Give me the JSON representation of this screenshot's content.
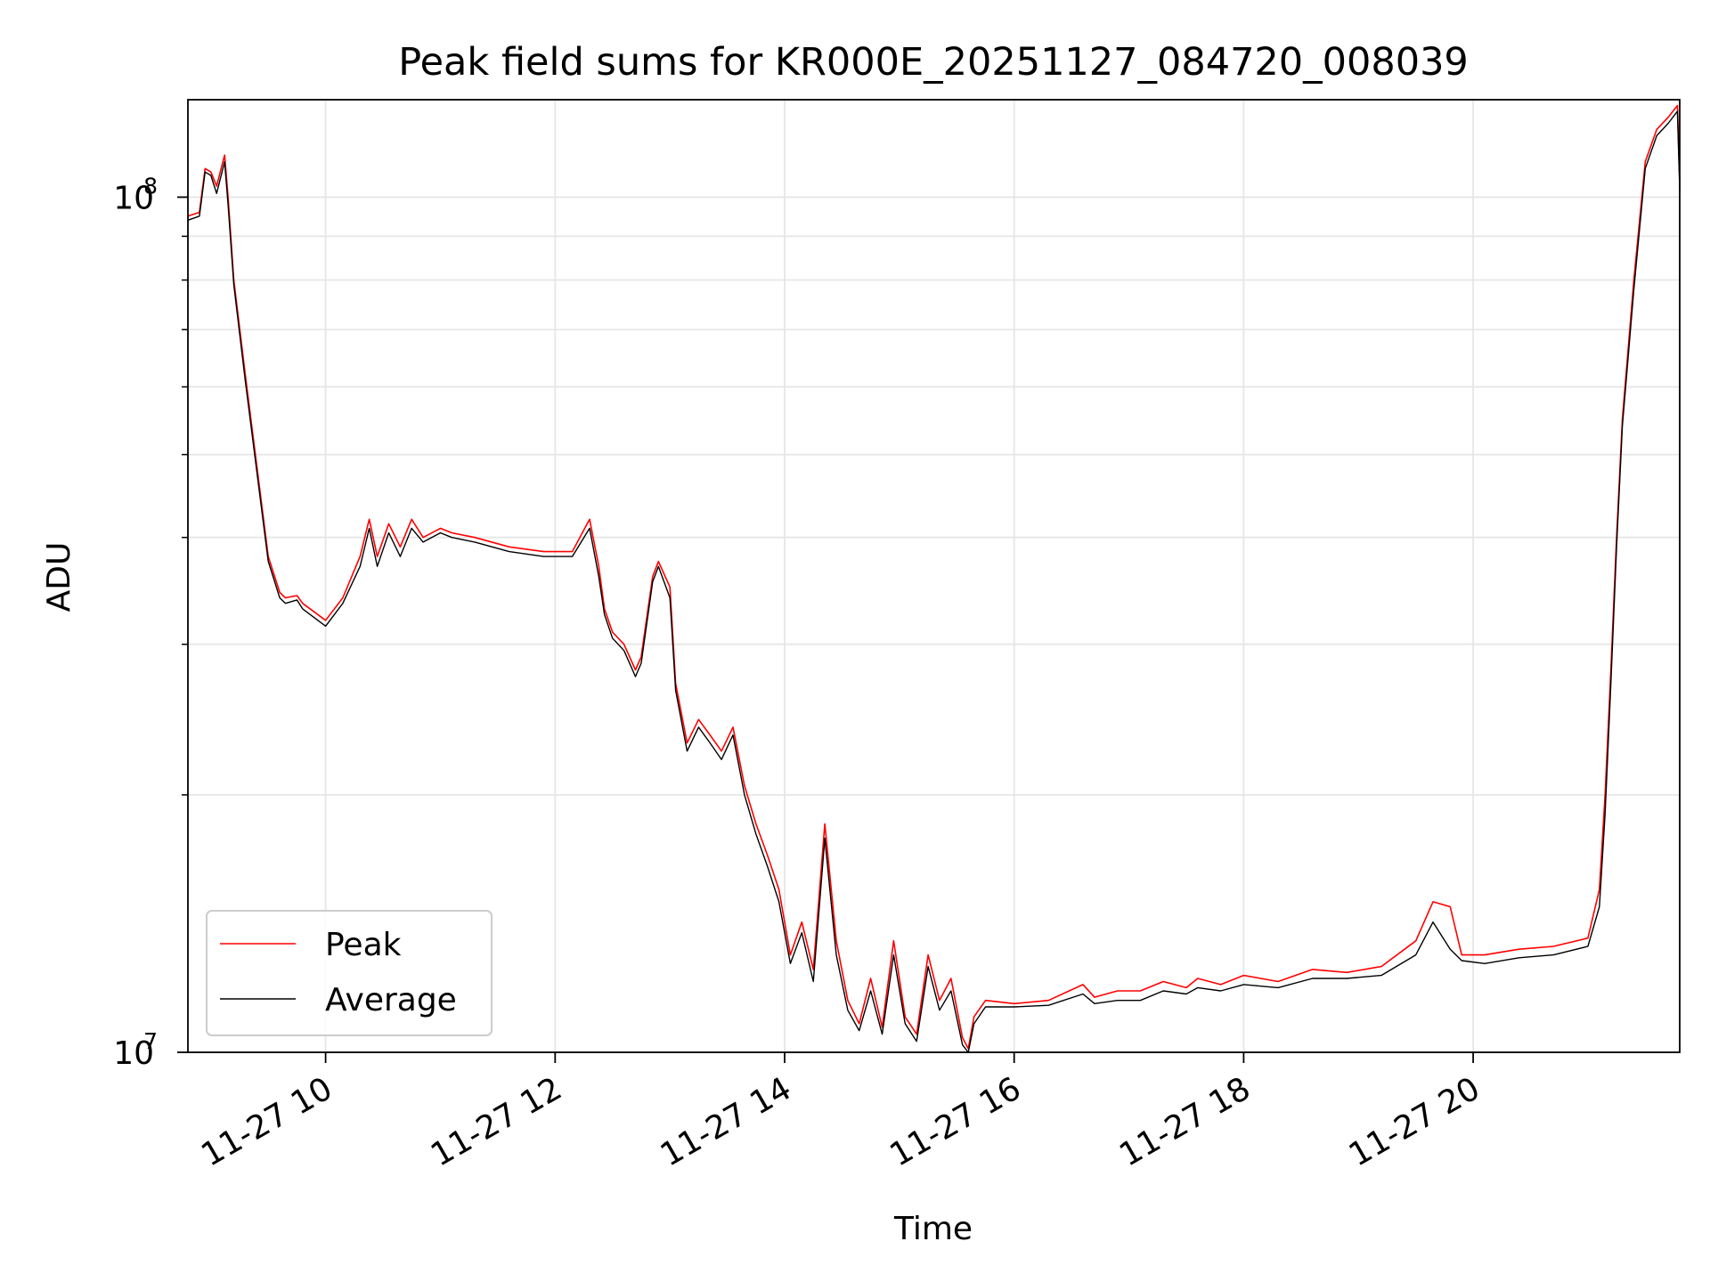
{
  "chart_data": {
    "type": "line",
    "title": "Peak field sums for KR000E_20251127_084720_008039",
    "xlabel": "Time",
    "ylabel": "ADU",
    "yscale": "log",
    "ylim": [
      10000000,
      130000000
    ],
    "xlim_hours": [
      8.8,
      21.8
    ],
    "grid": true,
    "legend_position": "lower-left",
    "x_ticks": [
      {
        "hour": 10,
        "label": "11-27 10"
      },
      {
        "hour": 12,
        "label": "11-27 12"
      },
      {
        "hour": 14,
        "label": "11-27 14"
      },
      {
        "hour": 16,
        "label": "11-27 16"
      },
      {
        "hour": 18,
        "label": "11-27 18"
      },
      {
        "hour": 20,
        "label": "11-27 20"
      }
    ],
    "y_ticks": [
      {
        "value": 10000000,
        "base": "10",
        "exp": "7"
      },
      {
        "value": 100000000,
        "base": "10",
        "exp": "8"
      }
    ],
    "y_minor_ticks": [
      20000000,
      30000000,
      40000000,
      50000000,
      60000000,
      70000000,
      80000000,
      90000000
    ],
    "series": [
      {
        "name": "Peak",
        "color": "#ff0000",
        "x_hours": [
          8.8,
          8.9,
          8.95,
          9.0,
          9.05,
          9.12,
          9.15,
          9.2,
          9.3,
          9.5,
          9.6,
          9.65,
          9.75,
          9.8,
          10.0,
          10.15,
          10.3,
          10.38,
          10.45,
          10.55,
          10.65,
          10.75,
          10.85,
          11.0,
          11.1,
          11.3,
          11.6,
          11.9,
          12.15,
          12.3,
          12.38,
          12.43,
          12.5,
          12.6,
          12.7,
          12.75,
          12.85,
          12.9,
          13.0,
          13.05,
          13.15,
          13.25,
          13.35,
          13.45,
          13.55,
          13.65,
          13.75,
          13.85,
          13.95,
          14.05,
          14.15,
          14.25,
          14.35,
          14.45,
          14.55,
          14.65,
          14.75,
          14.85,
          14.95,
          15.05,
          15.15,
          15.25,
          15.35,
          15.45,
          15.55,
          15.6,
          15.65,
          15.75,
          16.0,
          16.3,
          16.6,
          16.7,
          16.9,
          17.1,
          17.3,
          17.5,
          17.6,
          17.8,
          18.0,
          18.3,
          18.6,
          18.9,
          19.2,
          19.5,
          19.65,
          19.8,
          19.9,
          20.1,
          20.4,
          20.7,
          21.0,
          21.1,
          21.15,
          21.2,
          21.25,
          21.3,
          21.4,
          21.5,
          21.6,
          21.7,
          21.78,
          21.8
        ],
        "values": [
          95000000,
          96000000,
          108000000,
          107000000,
          103000000,
          112000000,
          100000000,
          80000000,
          62000000,
          38000000,
          34500000,
          34000000,
          34200000,
          33500000,
          32000000,
          34000000,
          38000000,
          42000000,
          38000000,
          41500000,
          39000000,
          42000000,
          40000000,
          41000000,
          40500000,
          40000000,
          39000000,
          38500000,
          38500000,
          42000000,
          37000000,
          33000000,
          31000000,
          30000000,
          28000000,
          29000000,
          36000000,
          37500000,
          35000000,
          27000000,
          23000000,
          24500000,
          23500000,
          22500000,
          24000000,
          20500000,
          18500000,
          17000000,
          15500000,
          13000000,
          14200000,
          12500000,
          18500000,
          13500000,
          11500000,
          10800000,
          12200000,
          10700000,
          13500000,
          11000000,
          10500000,
          13000000,
          11500000,
          12200000,
          10400000,
          10100000,
          11000000,
          11500000,
          11400000,
          11500000,
          12000000,
          11600000,
          11800000,
          11800000,
          12100000,
          11900000,
          12200000,
          12000000,
          12300000,
          12100000,
          12500000,
          12400000,
          12600000,
          13500000,
          15000000,
          14800000,
          13000000,
          13000000,
          13200000,
          13300000,
          13600000,
          15500000,
          20000000,
          28000000,
          40000000,
          55000000,
          80000000,
          110000000,
          120000000,
          124000000,
          128000000,
          104000000
        ]
      },
      {
        "name": "Average",
        "color": "#000000",
        "x_hours": [
          8.8,
          8.9,
          8.95,
          9.0,
          9.05,
          9.12,
          9.15,
          9.2,
          9.3,
          9.5,
          9.6,
          9.65,
          9.75,
          9.8,
          10.0,
          10.15,
          10.3,
          10.38,
          10.45,
          10.55,
          10.65,
          10.75,
          10.85,
          11.0,
          11.1,
          11.3,
          11.6,
          11.9,
          12.15,
          12.3,
          12.38,
          12.43,
          12.5,
          12.6,
          12.7,
          12.75,
          12.85,
          12.9,
          13.0,
          13.05,
          13.15,
          13.25,
          13.35,
          13.45,
          13.55,
          13.65,
          13.75,
          13.85,
          13.95,
          14.05,
          14.15,
          14.25,
          14.35,
          14.45,
          14.55,
          14.65,
          14.75,
          14.85,
          14.95,
          15.05,
          15.15,
          15.25,
          15.35,
          15.45,
          15.55,
          15.6,
          15.65,
          15.75,
          16.0,
          16.3,
          16.6,
          16.7,
          16.9,
          17.1,
          17.3,
          17.5,
          17.6,
          17.8,
          18.0,
          18.3,
          18.6,
          18.9,
          19.2,
          19.5,
          19.65,
          19.8,
          19.9,
          20.1,
          20.4,
          20.7,
          21.0,
          21.1,
          21.15,
          21.2,
          21.25,
          21.3,
          21.4,
          21.5,
          21.6,
          21.7,
          21.78,
          21.8
        ],
        "values": [
          94000000,
          95000000,
          107000000,
          106000000,
          101000000,
          110000000,
          98000000,
          79000000,
          61000000,
          37500000,
          34000000,
          33500000,
          33800000,
          33000000,
          31500000,
          33500000,
          37000000,
          41000000,
          37000000,
          40500000,
          38000000,
          41000000,
          39500000,
          40500000,
          40000000,
          39500000,
          38500000,
          38000000,
          38000000,
          41000000,
          36000000,
          32500000,
          30500000,
          29500000,
          27500000,
          28500000,
          35500000,
          37000000,
          34000000,
          26500000,
          22500000,
          24000000,
          23000000,
          22000000,
          23500000,
          20000000,
          18000000,
          16500000,
          15000000,
          12700000,
          13800000,
          12100000,
          17800000,
          13000000,
          11200000,
          10600000,
          11800000,
          10500000,
          13000000,
          10800000,
          10300000,
          12600000,
          11200000,
          11800000,
          10200000,
          10000000,
          10800000,
          11300000,
          11300000,
          11350000,
          11700000,
          11400000,
          11500000,
          11500000,
          11800000,
          11700000,
          11900000,
          11800000,
          12000000,
          11900000,
          12200000,
          12200000,
          12300000,
          13000000,
          14200000,
          13200000,
          12800000,
          12700000,
          12900000,
          13000000,
          13300000,
          14800000,
          19000000,
          27000000,
          39000000,
          54000000,
          78000000,
          108000000,
          118000000,
          122000000,
          126000000,
          102000000
        ]
      }
    ]
  }
}
